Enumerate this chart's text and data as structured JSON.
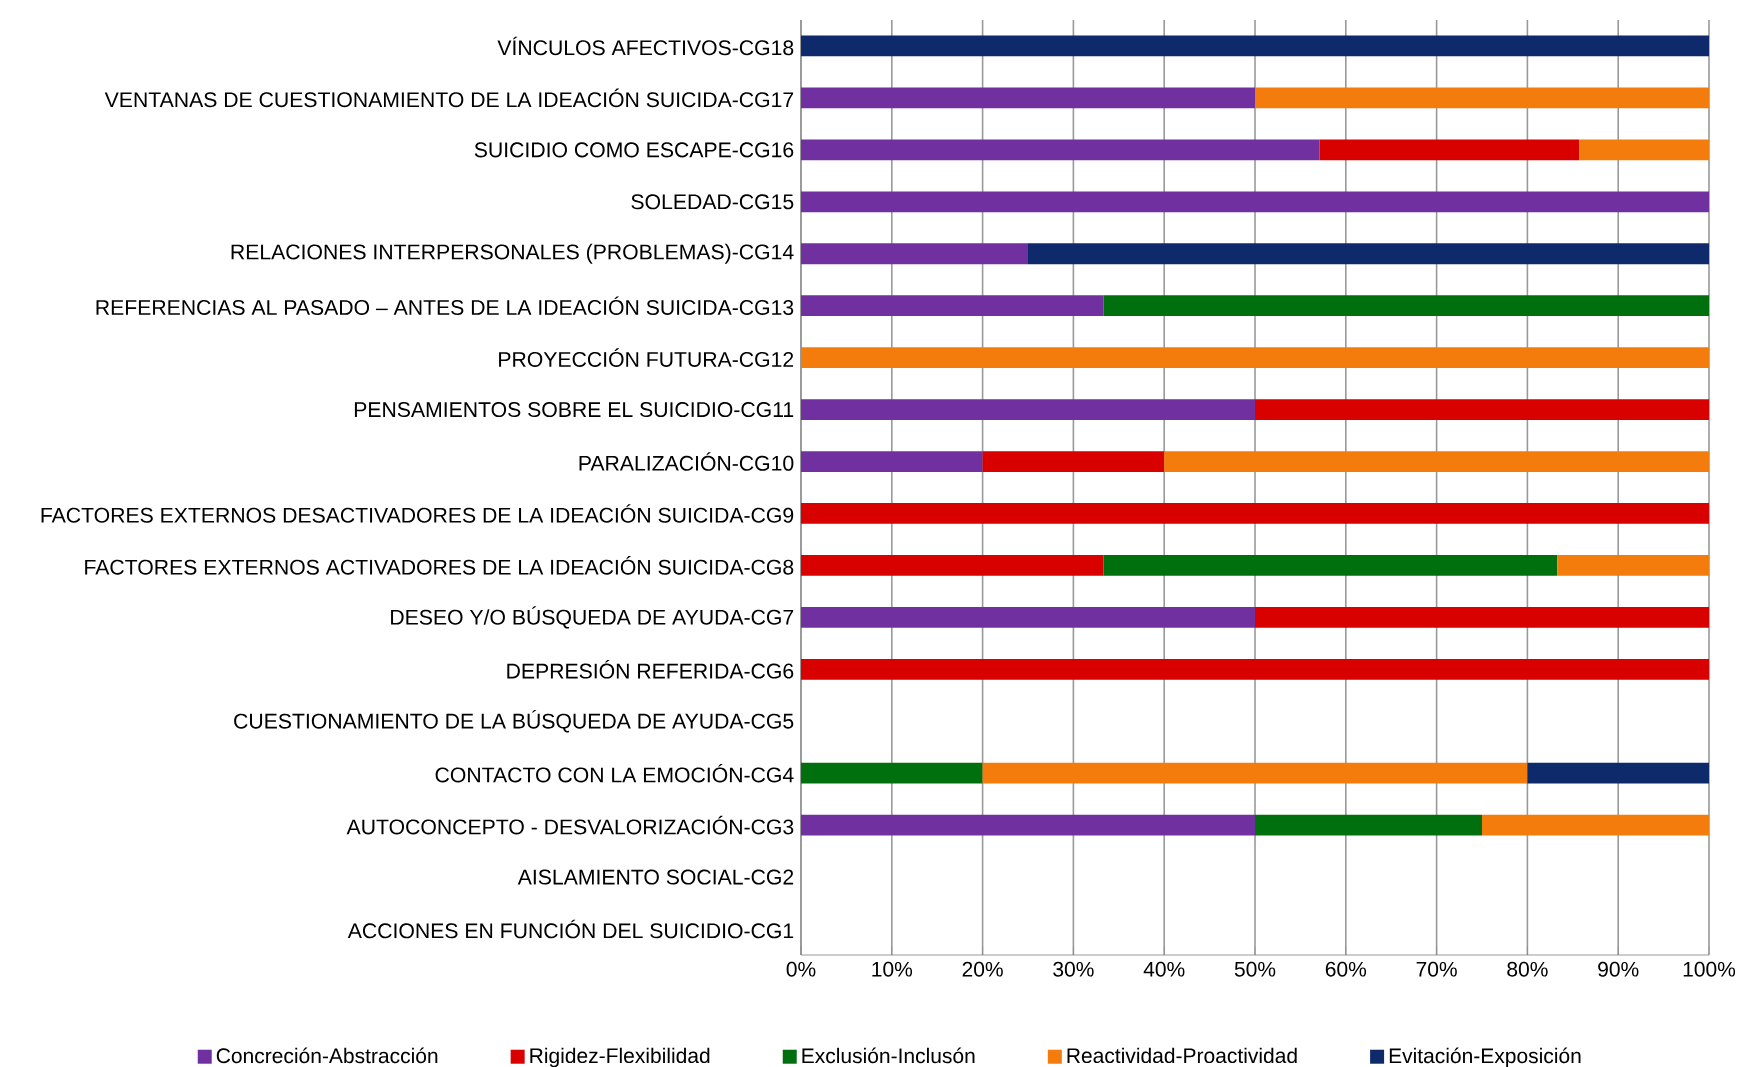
{
  "chart_data": {
    "type": "bar",
    "orientation": "horizontal",
    "stacked": true,
    "categories": [
      "VÍNCULOS AFECTIVOS-CG18",
      "VENTANAS DE CUESTIONAMIENTO DE LA IDEACIÓN SUICIDA-CG17",
      "SUICIDIO COMO ESCAPE-CG16",
      "SOLEDAD-CG15",
      "RELACIONES INTERPERSONALES  (PROBLEMAS)-CG14",
      "REFERENCIAS AL PASADO – ANTES DE LA IDEACIÓN SUICIDA-CG13",
      "PROYECCIÓN FUTURA-CG12",
      "PENSAMIENTOS SOBRE EL SUICIDIO-CG11",
      "PARALIZACIÓN-CG10",
      "FACTORES EXTERNOS DESACTIVADORES DE LA IDEACIÓN SUICIDA-CG9",
      "FACTORES EXTERNOS ACTIVADORES DE LA IDEACIÓN SUICIDA-CG8",
      "DESEO Y/O BÚSQUEDA DE AYUDA-CG7",
      "DEPRESIÓN REFERIDA-CG6",
      "CUESTIONAMIENTO DE LA BÚSQUEDA DE AYUDA-CG5",
      "CONTACTO CON LA EMOCIÓN-CG4",
      "AUTOCONCEPTO  -  DESVALORIZACIÓN-CG3",
      "AISLAMIENTO SOCIAL-CG2",
      "ACCIONES EN FUNCIÓN DEL SUICIDIO-CG1"
    ],
    "series": [
      {
        "name": "Concreción-Abstracción",
        "color": "#7030a0",
        "values": [
          null,
          50,
          57.1,
          100,
          25,
          33.3,
          null,
          50,
          20,
          null,
          null,
          50,
          null,
          null,
          null,
          50,
          null,
          null
        ]
      },
      {
        "name": "Rigidez-Flexibilidad",
        "color": "#d90000",
        "values": [
          null,
          null,
          28.6,
          null,
          null,
          null,
          null,
          50,
          20,
          100,
          33.3,
          50,
          100,
          null,
          null,
          null,
          null,
          null
        ]
      },
      {
        "name": "Exclusión-Inclusón",
        "color": "#00700e",
        "values": [
          null,
          null,
          null,
          null,
          null,
          66.7,
          null,
          null,
          null,
          null,
          50,
          null,
          null,
          null,
          20,
          25,
          null,
          null
        ]
      },
      {
        "name": "Reactividad-Proactividad",
        "color": "#f47c0c",
        "values": [
          null,
          50,
          14.3,
          null,
          null,
          null,
          100,
          null,
          60,
          null,
          16.7,
          null,
          null,
          null,
          60,
          25,
          null,
          null
        ]
      },
      {
        "name": "Evitación-Exposición",
        "color": "#0f2a6b",
        "values": [
          100,
          null,
          null,
          null,
          75,
          null,
          null,
          null,
          null,
          null,
          null,
          null,
          null,
          null,
          20,
          null,
          null,
          null
        ]
      }
    ],
    "xlim": [
      0,
      100
    ],
    "xticks": [
      {
        "value": 0,
        "label": "0%"
      },
      {
        "value": 10,
        "label": "10%"
      },
      {
        "value": 20,
        "label": "20%"
      },
      {
        "value": 30,
        "label": "30%"
      },
      {
        "value": 40,
        "label": "40%"
      },
      {
        "value": 50,
        "label": "50%"
      },
      {
        "value": 60,
        "label": "60%"
      },
      {
        "value": 70,
        "label": "70%"
      },
      {
        "value": 80,
        "label": "80%"
      },
      {
        "value": 90,
        "label": "90%"
      },
      {
        "value": 100,
        "label": "100%"
      }
    ],
    "grid": "x",
    "legend": "bottom"
  }
}
